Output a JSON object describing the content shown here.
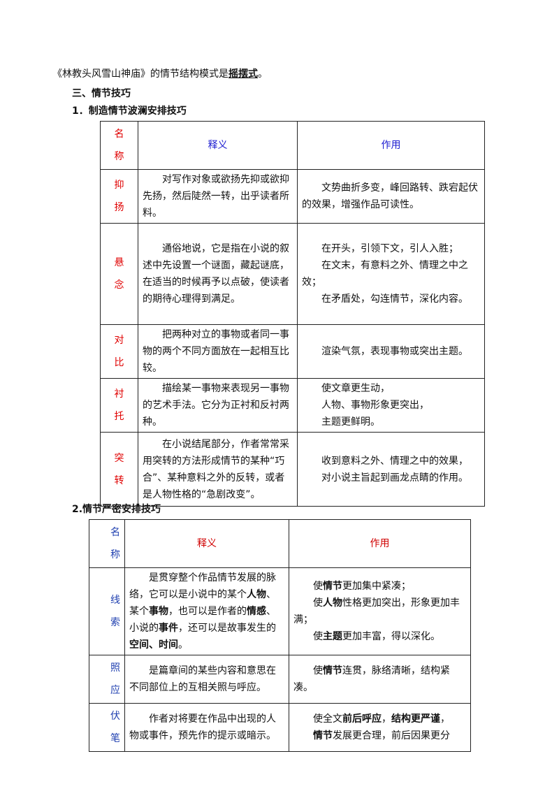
{
  "intro": [
    "《林教头风雪山神庙》的情节结构模式是",
    {
      "bold": "摇摆式",
      "underline": true
    },
    "。"
  ],
  "section_title": "三、情节技巧",
  "table1": {
    "title": "1．制造情节波澜安排技巧",
    "header": {
      "name": "名称",
      "definition": "释义",
      "effect": "作用"
    },
    "rows": [
      {
        "name": "抑扬",
        "definition": [
          "对写作对象或欲扬先抑或欲抑先扬，然后陡然一转，出乎读者所料。"
        ],
        "effect": [
          "文势曲折多变，峰回路转、跌宕起伏的效果，增强作品可读性。"
        ]
      },
      {
        "name": "悬念",
        "definition": [
          "通俗地说，它是指在小说的叙述中先设置一个谜面，藏起谜底，在适当的时候再予以点破，使读者的期待心理得到满足。"
        ],
        "effect": [
          "在开头，引领下文，引人入胜；",
          "在文末，有意料之外、情理之中之效；",
          "在矛盾处，勾连情节，深化内容。"
        ]
      },
      {
        "name": "对比",
        "definition": [
          "把两种对立的事物或者同一事物的两个不同方面放在一起相互比较。"
        ],
        "effect": [
          "渲染气氛，表现事物或突出主题。"
        ]
      },
      {
        "name": "衬托",
        "definition": [
          "描绘某一事物来表现另一事物的艺术手法。它分为正衬和反衬两种。"
        ],
        "effect": [
          "使文章更生动，",
          "人物、事物形象更突出，",
          "主题更鲜明。"
        ]
      },
      {
        "name": "突转",
        "definition": [
          "在小说结尾部分，作者常常采用突转的方法形成情节的某种“巧合”、某种意料之外的反转，或者是人物性格的“急剧改变”。"
        ],
        "effect": [
          "收到意料之外、情理之中的效果，",
          "对小说主旨起到画龙点睛的作用。"
        ]
      }
    ]
  },
  "table2": {
    "title": "2.情节严密安排技巧",
    "header": {
      "name": "名称",
      "definition": "释义",
      "effect": "作用"
    },
    "rows": [
      {
        "name": "线索",
        "definition": [
          [
            "是贯穿整个作品情节发展的脉络，它可以是小说中的某个",
            {
              "bold": "人物"
            },
            "、某个",
            {
              "bold": "事物"
            },
            "，也可以是作者的",
            {
              "bold": "情感"
            },
            "、小说的",
            {
              "bold": "事件"
            },
            "，还可以是故事发生的",
            {
              "bold": "空间、时间"
            },
            "。"
          ]
        ],
        "effect": [
          [
            "使",
            {
              "bold": "情节"
            },
            "更加集中紧凑；"
          ],
          [
            "使",
            {
              "bold": "人物"
            },
            "性格更加突出，形象更加丰满；"
          ],
          [
            "使",
            {
              "bold": "主题"
            },
            "更加丰富，得以深化。"
          ]
        ]
      },
      {
        "name": "照应",
        "definition": [
          "是篇章间的某些内容和意思在不同部位上的互相关照与呼应。"
        ],
        "effect": [
          [
            "使",
            {
              "bold": "情节"
            },
            "连贯，脉络清晰，结构紧凑。"
          ]
        ]
      },
      {
        "name": "伏笔",
        "definition": [
          "作者对将要在作品中出现的人物或事件，预先作的提示或暗示。"
        ],
        "effect": [
          [
            "使全文",
            {
              "bold": "前后呼应"
            },
            "，",
            {
              "bold": "结构更严谨"
            },
            "，"
          ],
          [
            {
              "bold": "情节"
            },
            "发展更合理，前后因果更分"
          ]
        ]
      }
    ]
  }
}
